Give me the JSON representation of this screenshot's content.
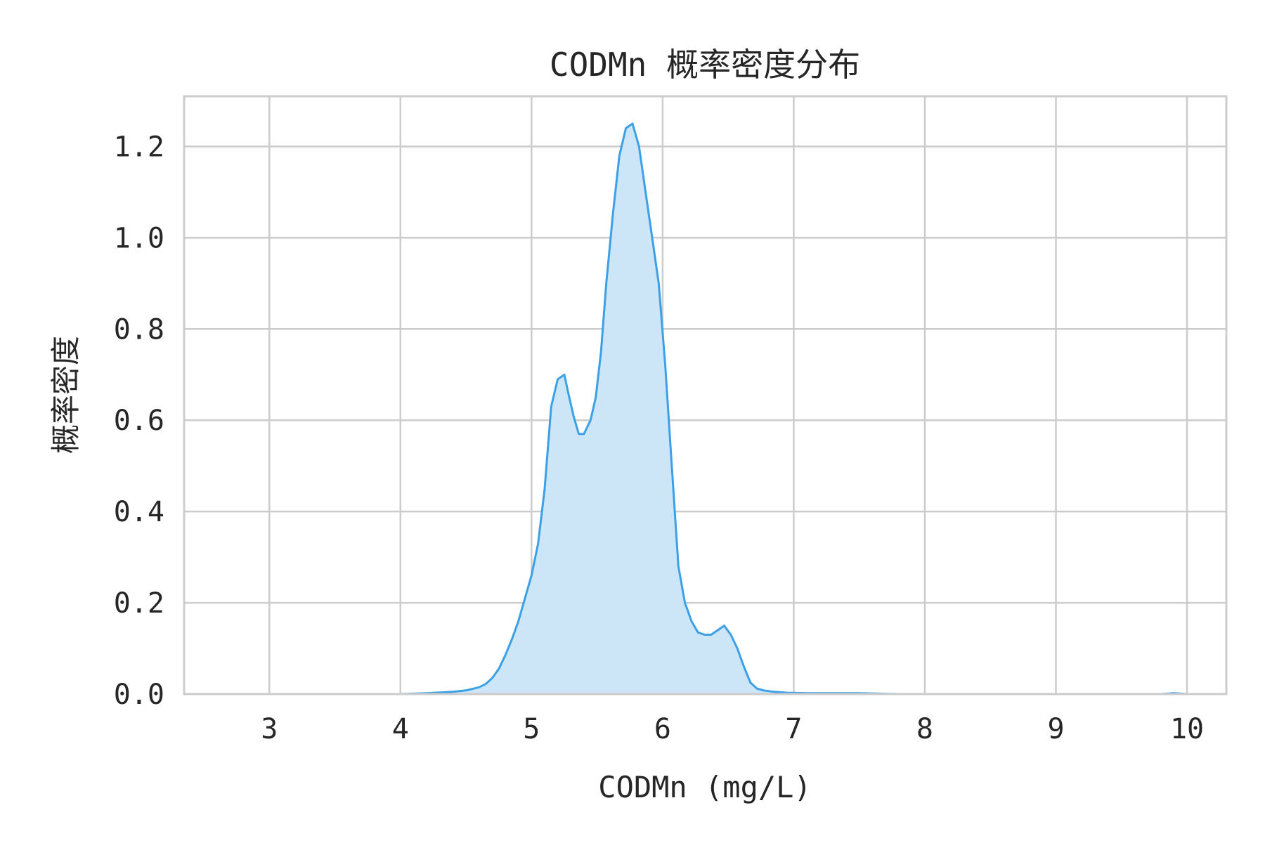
{
  "chart_data": {
    "type": "area",
    "title": "CODMn 概率密度分布",
    "xlabel": "CODMn (mg/L)",
    "ylabel": "概率密度",
    "xlim": [
      2.35,
      10.3
    ],
    "ylim": [
      0,
      1.31
    ],
    "x_ticks": [
      3,
      4,
      5,
      6,
      7,
      8,
      9,
      10
    ],
    "y_ticks": [
      0.0,
      0.2,
      0.4,
      0.6,
      0.8,
      1.0,
      1.2
    ],
    "x_tick_labels": [
      "3",
      "4",
      "5",
      "6",
      "7",
      "8",
      "9",
      "10"
    ],
    "y_tick_labels": [
      "0.0",
      "0.2",
      "0.4",
      "0.6",
      "0.8",
      "1.0",
      "1.2"
    ],
    "grid": true,
    "line_color": "#3ca0e6",
    "fill_color": "#cce6f8",
    "grid_color": "#cccccc",
    "series": [
      {
        "x": [
          2.4,
          4.0,
          4.2,
          4.4,
          4.5,
          4.6,
          4.65,
          4.7,
          4.75,
          4.8,
          4.85,
          4.9,
          4.95,
          5.0,
          5.05,
          5.1,
          5.15,
          5.2,
          5.25,
          5.28,
          5.32,
          5.36,
          5.4,
          5.45,
          5.49,
          5.53,
          5.57,
          5.62,
          5.67,
          5.72,
          5.77,
          5.82,
          5.87,
          5.92,
          5.97,
          6.02,
          6.07,
          6.12,
          6.17,
          6.22,
          6.27,
          6.32,
          6.37,
          6.42,
          6.47,
          6.52,
          6.57,
          6.62,
          6.67,
          6.72,
          6.77,
          6.85,
          6.95,
          7.1,
          7.5,
          7.8,
          8.5,
          9.5,
          9.8,
          9.9,
          10.0
        ],
        "y": [
          0.0,
          0.0,
          0.002,
          0.005,
          0.008,
          0.015,
          0.022,
          0.035,
          0.055,
          0.085,
          0.12,
          0.16,
          0.21,
          0.26,
          0.33,
          0.45,
          0.63,
          0.69,
          0.7,
          0.66,
          0.61,
          0.57,
          0.57,
          0.6,
          0.65,
          0.75,
          0.9,
          1.05,
          1.18,
          1.24,
          1.25,
          1.2,
          1.1,
          1.0,
          0.9,
          0.72,
          0.5,
          0.28,
          0.2,
          0.16,
          0.135,
          0.13,
          0.13,
          0.14,
          0.15,
          0.13,
          0.1,
          0.06,
          0.025,
          0.012,
          0.008,
          0.005,
          0.003,
          0.002,
          0.002,
          0.0,
          0.0,
          0.0,
          0.0,
          0.002,
          0.0
        ]
      }
    ]
  }
}
